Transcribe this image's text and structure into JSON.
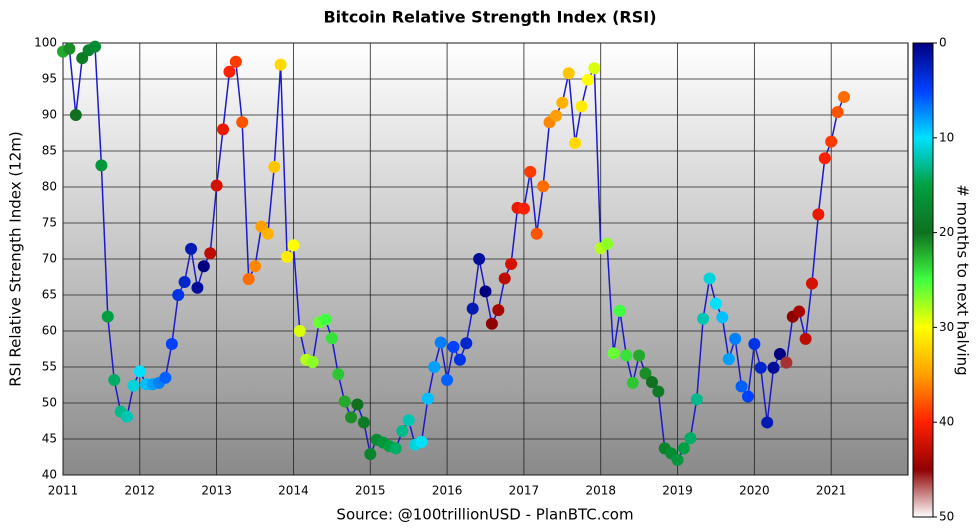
{
  "chart_data": {
    "type": "scatter",
    "title": "Bitcoin Relative Strength Index (RSI)",
    "ylabel": "RSI Relative Strength Index (12m)",
    "source": "Source: @100trillionUSD  -  PlanBTC.com",
    "x": [
      2011,
      2011.083,
      2011.167,
      2011.25,
      2011.333,
      2011.417,
      2011.5,
      2011.583,
      2011.667,
      2011.75,
      2011.833,
      2011.917,
      2012,
      2012.083,
      2012.167,
      2012.25,
      2012.333,
      2012.417,
      2012.5,
      2012.583,
      2012.667,
      2012.75,
      2012.833,
      2012.917,
      2013,
      2013.083,
      2013.167,
      2013.25,
      2013.333,
      2013.417,
      2013.5,
      2013.583,
      2013.667,
      2013.75,
      2013.833,
      2013.917,
      2014,
      2014.083,
      2014.167,
      2014.25,
      2014.333,
      2014.417,
      2014.5,
      2014.583,
      2014.667,
      2014.75,
      2014.833,
      2014.917,
      2015,
      2015.083,
      2015.167,
      2015.25,
      2015.333,
      2015.417,
      2015.5,
      2015.583,
      2015.667,
      2015.75,
      2015.833,
      2015.917,
      2016,
      2016.083,
      2016.167,
      2016.25,
      2016.333,
      2016.417,
      2016.5,
      2016.583,
      2016.667,
      2016.75,
      2016.833,
      2016.917,
      2017,
      2017.083,
      2017.167,
      2017.25,
      2017.333,
      2017.417,
      2017.5,
      2017.583,
      2017.667,
      2017.75,
      2017.833,
      2017.917,
      2018,
      2018.083,
      2018.167,
      2018.25,
      2018.333,
      2018.417,
      2018.5,
      2018.583,
      2018.667,
      2018.75,
      2018.833,
      2018.917,
      2019,
      2019.083,
      2019.167,
      2019.25,
      2019.333,
      2019.417,
      2019.5,
      2019.583,
      2019.667,
      2019.75,
      2019.833,
      2019.917,
      2020,
      2020.083,
      2020.167,
      2020.25,
      2020.333,
      2020.417,
      2020.5,
      2020.583,
      2020.667,
      2020.75,
      2020.833,
      2020.917,
      2021,
      2021.083,
      2021.167
    ],
    "series": [
      {
        "line_color": "#1a1acc",
        "values": [
          98.8,
          99.2,
          90,
          97.9,
          99,
          99.5,
          83,
          62,
          53.2,
          48.8,
          48.1,
          52.4,
          54.4,
          52.6,
          52.6,
          52.8,
          53.5,
          58.2,
          65,
          66.8,
          71.4,
          66,
          69,
          70.8,
          80.2,
          88,
          96,
          97.4,
          89,
          67.2,
          69,
          74.5,
          73.5,
          82.8,
          97,
          70.3,
          71.9,
          60,
          56,
          55.7,
          61.2,
          61.6,
          59,
          54,
          50.2,
          48,
          49.8,
          47.3,
          42.9,
          44.9,
          44.5,
          44,
          43.7,
          46.1,
          47.6,
          44.2,
          44.6,
          50.6,
          55,
          58.4,
          53.2,
          57.8,
          56,
          58.3,
          63.1,
          70,
          65.5,
          61,
          62.9,
          67.3,
          69.3,
          77.1,
          77,
          82.1,
          73.5,
          80.1,
          89,
          89.9,
          91.7,
          95.8,
          86.1,
          91.2,
          94.9,
          96.5,
          71.5,
          72.1,
          56.9,
          62.8,
          56.6,
          52.8,
          56.6,
          54.1,
          52.9,
          51.6,
          43.7,
          43,
          42.1,
          43.7,
          45.1,
          50.5,
          61.7,
          67.3,
          63.8,
          61.9,
          56.1,
          58.9,
          52.3,
          50.9,
          58.2,
          54.9,
          47.3,
          54.9,
          56.8,
          55.6,
          62,
          62.7,
          58.9,
          66.6,
          76.2,
          84,
          86.3,
          90.4,
          92.5
        ],
        "color_values": [
          22,
          21,
          20,
          19,
          18,
          17,
          16,
          15,
          14,
          13,
          12,
          11,
          10,
          9,
          8,
          7,
          6,
          5,
          4,
          3,
          2,
          1,
          0,
          43,
          42,
          41,
          40,
          39,
          38,
          37,
          36,
          35,
          34,
          33,
          32,
          31,
          30,
          29,
          28,
          27,
          26,
          25,
          24,
          23,
          22,
          21,
          20,
          19,
          18,
          17,
          16,
          15,
          14,
          13,
          12,
          11,
          10,
          9,
          8,
          7,
          6,
          5,
          4,
          3,
          2,
          1,
          0,
          45,
          44,
          43,
          42,
          41,
          40,
          39,
          38,
          37,
          36,
          35,
          34,
          33,
          32,
          31,
          30,
          29,
          28,
          27,
          26,
          25,
          24,
          23,
          22,
          21,
          20,
          19,
          18,
          17,
          16,
          15,
          14,
          13,
          12,
          11,
          10,
          9,
          8,
          7,
          6,
          5,
          4,
          3,
          2,
          1,
          0,
          46,
          45,
          44,
          43,
          42,
          41,
          40,
          39,
          38,
          37
        ]
      }
    ],
    "xlim": [
      2011,
      2022
    ],
    "xticks": [
      2011,
      2012,
      2013,
      2014,
      2015,
      2016,
      2017,
      2018,
      2019,
      2020,
      2021
    ],
    "ylim": [
      40,
      100
    ],
    "yticks": [
      40,
      45,
      50,
      55,
      60,
      65,
      70,
      75,
      80,
      85,
      90,
      95,
      100
    ],
    "grid": true,
    "colorbar": {
      "label": "# months to next halving",
      "lim": [
        0,
        50
      ],
      "ticks": [
        0,
        10,
        20,
        30,
        40,
        50
      ],
      "colors": [
        "#000080",
        "#0040ff",
        "#00e0ff",
        "#00a040",
        "#107020",
        "#40ff40",
        "#ffff00",
        "#ffa000",
        "#ff2000",
        "#900000",
        "#ffffff"
      ]
    }
  }
}
